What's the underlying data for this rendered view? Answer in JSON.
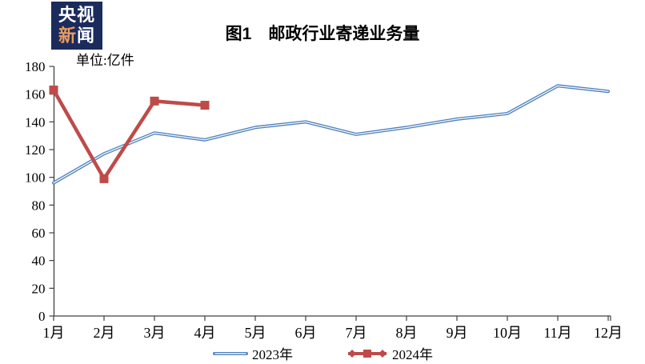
{
  "logo": {
    "line1": "央视",
    "line2_highlight": "新",
    "line2_rest": "闻"
  },
  "header": {
    "title": "图1　邮政行业寄递业务量",
    "unit_label": "单位:亿件"
  },
  "colors": {
    "logo_bg": "#1B2B5C",
    "logo_text": "#FFFFFF",
    "logo_accent": "#E89B60",
    "axis": "#404040",
    "text": "#000000",
    "series_2023": "#4F81BD",
    "series_2023_inner": "#EDF3FA",
    "series_2024": "#BE4B48"
  },
  "chart_data": {
    "type": "line",
    "title": "图1　邮政行业寄递业务量",
    "unit": "单位:亿件",
    "categories": [
      "1月",
      "2月",
      "3月",
      "4月",
      "5月",
      "6月",
      "7月",
      "8月",
      "9月",
      "10月",
      "11月",
      "12月"
    ],
    "series": [
      {
        "name": "2023年",
        "color": "#4F81BD",
        "marker": "none",
        "values": [
          96,
          117,
          132,
          127,
          136,
          140,
          131,
          136,
          142,
          146,
          166,
          162
        ]
      },
      {
        "name": "2024年",
        "color": "#BE4B48",
        "marker": "square",
        "values": [
          163,
          99,
          155,
          152,
          null,
          null,
          null,
          null,
          null,
          null,
          null,
          null
        ]
      }
    ],
    "ylim": [
      0,
      180
    ],
    "ytick_step": 20,
    "grid": false,
    "legend_position": "bottom"
  }
}
